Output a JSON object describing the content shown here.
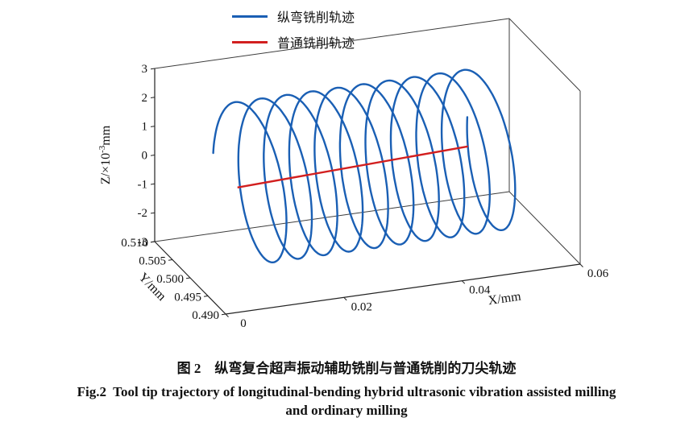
{
  "chart_data": {
    "type": "line",
    "plot_kind": "3d-parametric-trajectory",
    "grid": false,
    "background": "#ffffff",
    "legend": [
      {
        "label": "纵弯铣削轨迹",
        "color": "#1a5fb4"
      },
      {
        "label": "普通铣削轨迹",
        "color": "#d21f1f"
      }
    ],
    "axes": {
      "x": {
        "label": "X/mm",
        "range": [
          0,
          0.06
        ],
        "tick_values": [
          0,
          0.02,
          0.04,
          0.06
        ],
        "tick_labels": [
          "0",
          "0.02",
          "0.04",
          "0.06"
        ]
      },
      "y": {
        "label": "Y/mm",
        "range": [
          0.49,
          0.51
        ],
        "tick_values": [
          0.49,
          0.495,
          0.5,
          0.505,
          0.51
        ],
        "tick_labels": [
          "0.490",
          "0.495",
          "0.500",
          "0.505",
          "0.510"
        ]
      },
      "z": {
        "label": "Z/×10⁻³mm",
        "label_parts": {
          "base": "Z/×10",
          "superscript": "-3",
          "unit": "mm"
        },
        "range": [
          -3,
          3
        ],
        "tick_values": [
          -3,
          -2,
          -1,
          0,
          1,
          2,
          3
        ],
        "tick_labels": [
          "-3",
          "-2",
          "-1",
          "0",
          "1",
          "2",
          "3"
        ]
      }
    },
    "series": [
      {
        "name": "纵弯铣削轨迹",
        "type": "helix",
        "color": "#1a5fb4",
        "x_range": [
          0.009,
          0.052
        ],
        "turns": 10,
        "y_center": 0.5,
        "y_amplitude": 0.0085,
        "z_center": 0,
        "z_amplitude": 2.6
      },
      {
        "name": "普通铣削轨迹",
        "type": "straight-line",
        "color": "#d21f1f",
        "start": [
          0.008,
          0.5,
          -0.1
        ],
        "end": [
          0.047,
          0.5,
          0.2
        ]
      }
    ]
  },
  "caption": {
    "zh": "图 2　纵弯复合超声振动辅助铣削与普通铣削的刀尖轨迹",
    "en_line1": "Fig.2  Tool tip trajectory of longitudinal-bending hybrid ultrasonic vibration assisted milling",
    "en_line2": "and ordinary milling"
  }
}
